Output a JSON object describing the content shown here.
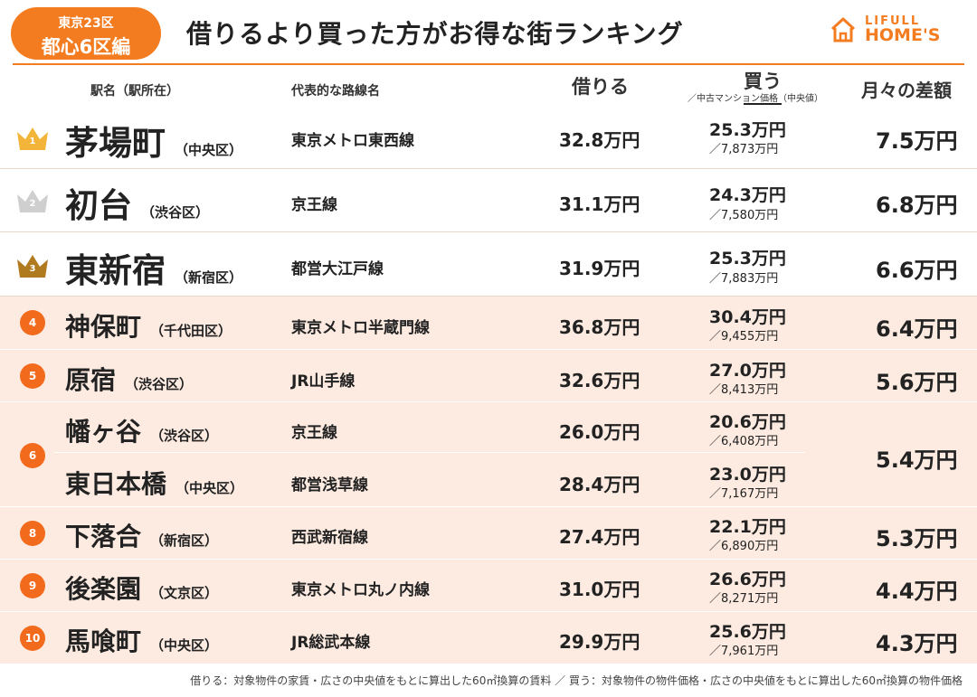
{
  "header": {
    "badge_line1": "東京23区",
    "badge_line2": "都心6区編",
    "title": "借りるより買った方がお得な街ランキング",
    "logo_line1": "LIFULL",
    "logo_line2": "HOME'S"
  },
  "columns": {
    "station": "駅名（駅所在）",
    "line": "代表的な路線名",
    "rent": "借りる",
    "buy": "買う",
    "buy_sub": "／中古マンション価格（中央値）",
    "diff": "月々の差額"
  },
  "rows": [
    {
      "rank": "1",
      "station": "茅場町",
      "ward": "（中央区）",
      "line": "東京メトロ東西線",
      "rent": "32.8万円",
      "buy": "25.3万円",
      "price": "／7,873万円",
      "diff": "7.5万円"
    },
    {
      "rank": "2",
      "station": "初台",
      "ward": "（渋谷区）",
      "line": "京王線",
      "rent": "31.1万円",
      "buy": "24.3万円",
      "price": "／7,580万円",
      "diff": "6.8万円"
    },
    {
      "rank": "3",
      "station": "東新宿",
      "ward": "（新宿区）",
      "line": "都営大江戸線",
      "rent": "31.9万円",
      "buy": "25.3万円",
      "price": "／7,883万円",
      "diff": "6.6万円"
    },
    {
      "rank": "4",
      "station": "神保町",
      "ward": "（千代田区）",
      "line": "東京メトロ半蔵門線",
      "rent": "36.8万円",
      "buy": "30.4万円",
      "price": "／9,455万円",
      "diff": "6.4万円"
    },
    {
      "rank": "5",
      "station": "原宿",
      "ward": "（渋谷区）",
      "line": "JR山手線",
      "rent": "32.6万円",
      "buy": "27.0万円",
      "price": "／8,413万円",
      "diff": "5.6万円"
    },
    {
      "rank": "6",
      "station": "幡ヶ谷",
      "ward": "（渋谷区）",
      "line": "京王線",
      "rent": "26.0万円",
      "buy": "20.6万円",
      "price": "／6,408万円",
      "diff": "5.4万円"
    },
    {
      "rank": "6",
      "station": "東日本橋",
      "ward": "（中央区）",
      "line": "都営浅草線",
      "rent": "28.4万円",
      "buy": "23.0万円",
      "price": "／7,167万円",
      "diff": "5.4万円"
    },
    {
      "rank": "8",
      "station": "下落合",
      "ward": "（新宿区）",
      "line": "西武新宿線",
      "rent": "27.4万円",
      "buy": "22.1万円",
      "price": "／6,890万円",
      "diff": "5.3万円"
    },
    {
      "rank": "9",
      "station": "後楽園",
      "ward": "（文京区）",
      "line": "東京メトロ丸ノ内線",
      "rent": "31.0万円",
      "buy": "26.6万円",
      "price": "／8,271万円",
      "diff": "4.4万円"
    },
    {
      "rank": "10",
      "station": "馬喰町",
      "ward": "（中央区）",
      "line": "JR総武本線",
      "rent": "29.9万円",
      "buy": "25.6万円",
      "price": "／7,961万円",
      "diff": "4.3万円"
    }
  ],
  "colors": {
    "accent": "#f47c20",
    "rank_circle": "#f26a1b",
    "row_highlight": "#fdebe1",
    "gold": "#f2b53a",
    "silver": "#cfcfcf",
    "bronze": "#b07a1f"
  },
  "footnote": "借りる：対象物件の家賃・広さの中央値をもとに算出した60㎡換算の賃料 ／ 買う：対象物件の物件価格・広さの中央値をもとに算出した60㎡換算の物件価格"
}
